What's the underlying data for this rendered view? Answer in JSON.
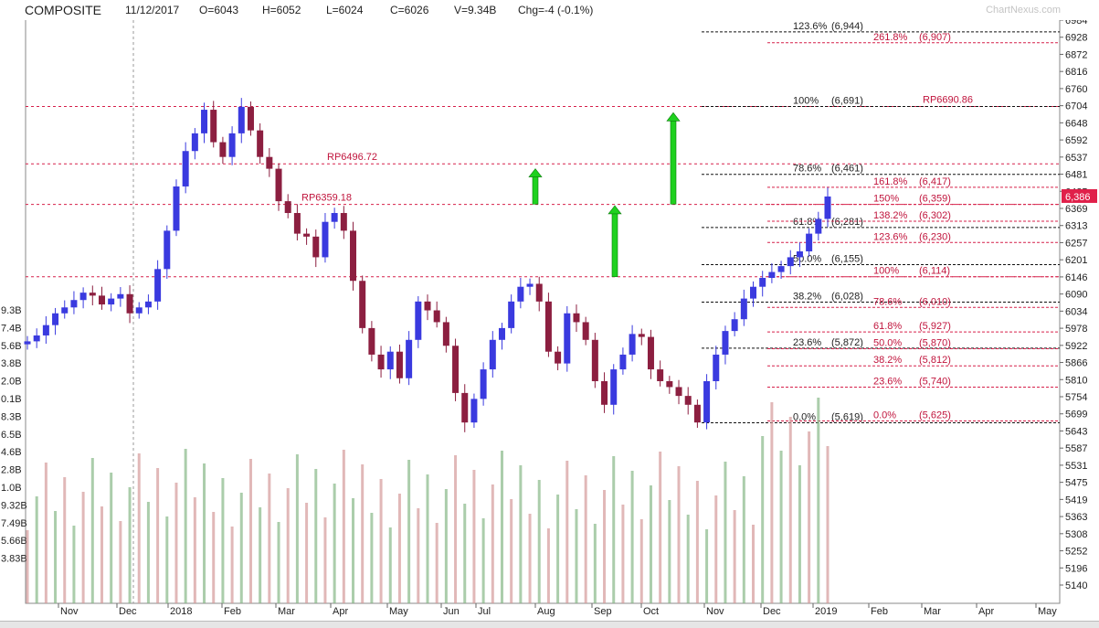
{
  "header": {
    "title": "COMPOSITE",
    "date": "11/12/2017",
    "open": "O=6043",
    "high": "H=6052",
    "low": "L=6024",
    "close": "C=6026",
    "volume": "V=9.34B",
    "change": "Chg=-4 (-0.1%)",
    "watermark": "ChartNexus.com"
  },
  "colors": {
    "up": "#3a3adf",
    "down": "#8c1f40",
    "ref_line": "#d6204a",
    "fib_line": "#111111",
    "fib_text_black": "#222222",
    "fib_text_red": "#c0143c",
    "arrow": "#1fd11f",
    "volume": "#88b888",
    "volume_alt": "#d49a9a",
    "grid": "#cccccc",
    "last_price_box": "#e0204a"
  },
  "chart_data": {
    "type": "candlestick",
    "ylim": [
      5100,
      6990
    ],
    "price_ticks": [
      "6984",
      "6928",
      "6872",
      "6816",
      "6760",
      "6704",
      "6648",
      "6592",
      "6537",
      "6481",
      "6425",
      "6369",
      "6313",
      "6257",
      "6201",
      "6146",
      "6090",
      "6034",
      "5978",
      "5922",
      "5866",
      "5810",
      "5754",
      "5699",
      "5643",
      "5587",
      "5531",
      "5475",
      "5419",
      "5363",
      "5308",
      "5252",
      "5196",
      "5140"
    ],
    "volume_ticks": [
      "9.3B",
      "7.4B",
      "5.6B",
      "3.8B",
      "2.0B",
      "0.1B",
      "8.3B",
      "6.5B",
      "4.6B",
      "2.8B",
      "1.0B",
      "9.32B",
      "7.49B",
      "5.66B",
      "3.83B"
    ],
    "x_months": [
      "Nov",
      "Dec",
      "2018",
      "Feb",
      "Mar",
      "Apr",
      "May",
      "Jun",
      "Jul",
      "Aug",
      "Sep",
      "Oct",
      "Nov",
      "Dec",
      "2019",
      "Feb",
      "Mar",
      "Apr",
      "May"
    ],
    "last_price": "6,386",
    "close_series": [
      5895,
      5915,
      5950,
      5990,
      6010,
      6035,
      6060,
      6050,
      6020,
      6040,
      6055,
      5990,
      6010,
      6030,
      6140,
      6270,
      6420,
      6540,
      6600,
      6680,
      6570,
      6520,
      6600,
      6690,
      6610,
      6520,
      6480,
      6370,
      6330,
      6260,
      6250,
      6180,
      6300,
      6330,
      6270,
      6100,
      5940,
      5850,
      5800,
      5860,
      5770,
      5900,
      6030,
      6000,
      5960,
      5880,
      5720,
      5620,
      5700,
      5800,
      5900,
      5940,
      6030,
      6080,
      6090,
      6030,
      5860,
      5820,
      5990,
      5960,
      5900,
      5760,
      5680,
      5800,
      5850,
      5920,
      5910,
      5800,
      5760,
      5740,
      5710,
      5680,
      5620,
      5760,
      5850,
      5930,
      5970,
      6040,
      6080,
      6110,
      6130,
      6150,
      6180,
      6200,
      6260,
      6310,
      6386
    ],
    "reference_lines": [
      {
        "label": "RP6690.86",
        "value": 6690.86
      },
      {
        "label": "RP6496.72",
        "value": 6496.72
      },
      {
        "label": "RP6359.18",
        "value": 6359.18
      },
      {
        "label": "",
        "value": 6114
      }
    ],
    "fib_levels_black": [
      {
        "label": "123.6%",
        "value_text": "(6,944)",
        "value": 6944
      },
      {
        "label": "100%",
        "value_text": "(6,691)",
        "value": 6691
      },
      {
        "label": "78.6%",
        "value_text": "(6,461)",
        "value": 6461
      },
      {
        "label": "61.8%",
        "value_text": "(6,281)",
        "value": 6281
      },
      {
        "label": "50.0%",
        "value_text": "(6,155)",
        "value": 6155
      },
      {
        "label": "38.2%",
        "value_text": "(6,028)",
        "value": 6028
      },
      {
        "label": "23.6%",
        "value_text": "(5,872)",
        "value": 5872
      },
      {
        "label": "0.0%",
        "value_text": "(5,619)",
        "value": 5619
      }
    ],
    "fib_levels_red": [
      {
        "label": "261.8%",
        "value_text": "(6,907)",
        "value": 6907
      },
      {
        "label": "161.8%",
        "value_text": "(6,417)",
        "value": 6417
      },
      {
        "label": "150%",
        "value_text": "(6,359)",
        "value": 6359
      },
      {
        "label": "138.2%",
        "value_text": "(6,302)",
        "value": 6302
      },
      {
        "label": "123.6%",
        "value_text": "(6,230)",
        "value": 6230
      },
      {
        "label": "100%",
        "value_text": "(6,114)",
        "value": 6114
      },
      {
        "label": "78.6%",
        "value_text": "(6,010)",
        "value": 6010
      },
      {
        "label": "61.8%",
        "value_text": "(5,927)",
        "value": 5927
      },
      {
        "label": "50.0%",
        "value_text": "(5,870)",
        "value": 5870
      },
      {
        "label": "38.2%",
        "value_text": "(5,812)",
        "value": 5812
      },
      {
        "label": "23.6%",
        "value_text": "(5,740)",
        "value": 5740
      },
      {
        "label": "0.0%",
        "value_text": "(5,625)",
        "value": 5625
      }
    ],
    "arrows": [
      {
        "direction": "up",
        "from": 6360,
        "to": 6480
      },
      {
        "direction": "up",
        "from": 6114,
        "to": 6355
      },
      {
        "direction": "up",
        "from": 6360,
        "to": 6670
      }
    ]
  }
}
